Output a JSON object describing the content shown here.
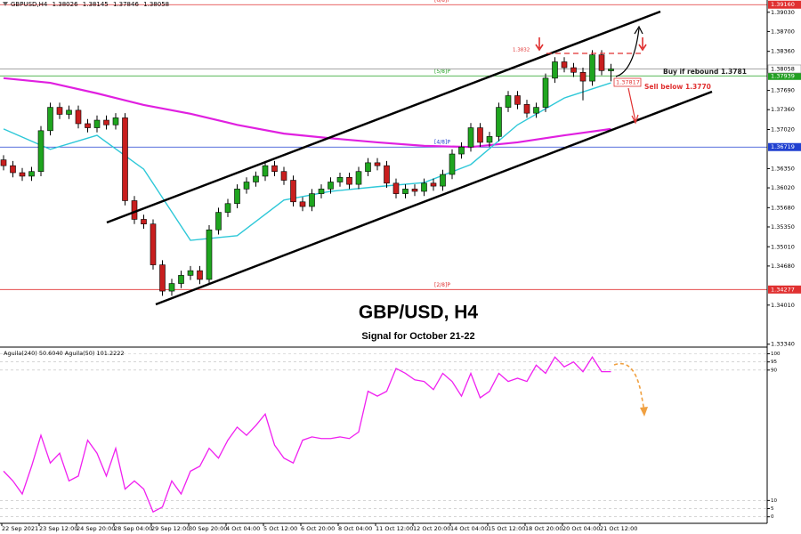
{
  "chart_data": [
    {
      "type": "candlestick",
      "symbol": "GBPUSD,H4",
      "title": "GBP/USD, H4",
      "subtitle": "Signal for October 21-22",
      "annotations": [
        "Buy if rebound 1.3781",
        "Sell below 1.3770",
        "1.3832",
        "1.37817"
      ],
      "categories": [
        "22 Sep 2021",
        null,
        null,
        null,
        "23 Sep 12:00",
        null,
        null,
        null,
        "24 Sep 20:00",
        null,
        null,
        null,
        "28 Sep 04:00",
        null,
        null,
        null,
        "29 Sep 12:00",
        null,
        null,
        null,
        "30 Sep 20:00",
        null,
        null,
        null,
        "4 Oct 04:00",
        null,
        null,
        null,
        "5 Oct 12:00",
        null,
        null,
        null,
        "6 Oct 20:00",
        null,
        null,
        null,
        "8 Oct 04:00",
        null,
        null,
        null,
        "11 Oct 12:00",
        null,
        null,
        null,
        "12 Oct 20:00",
        null,
        null,
        null,
        "14 Oct 04:00",
        null,
        null,
        null,
        "15 Oct 12:00",
        null,
        null,
        null,
        "18 Oct 20:00",
        null,
        null,
        null,
        "20 Oct 04:00",
        null,
        null,
        null,
        "21 Oct 12:00",
        null
      ],
      "open": [
        1.365,
        1.364,
        1.3628,
        1.3622,
        1.363,
        1.37,
        1.374,
        1.3728,
        1.3735,
        1.3712,
        1.3705,
        1.3718,
        1.371,
        1.3722,
        1.358,
        1.3548,
        1.354,
        1.347,
        1.3425,
        1.3438,
        1.3452,
        1.346,
        1.3445,
        1.353,
        1.356,
        1.3575,
        1.36,
        1.3612,
        1.3622,
        1.364,
        1.363,
        1.3615,
        1.3578,
        1.357,
        1.3592,
        1.36,
        1.3612,
        1.362,
        1.3608,
        1.363,
        1.3645,
        1.364,
        1.361,
        1.3592,
        1.36,
        1.3596,
        1.361,
        1.3605,
        1.3625,
        1.366,
        1.3672,
        1.3705,
        1.368,
        1.369,
        1.374,
        1.376,
        1.3745,
        1.373,
        1.374,
        1.379,
        1.3818,
        1.3808,
        1.38,
        1.3785,
        1.383,
        1.38026
      ],
      "high": [
        1.3658,
        1.3648,
        1.3636,
        1.3638,
        1.3708,
        1.3748,
        1.3748,
        1.3743,
        1.3743,
        1.372,
        1.3726,
        1.3726,
        1.373,
        1.373,
        1.3588,
        1.3556,
        1.3548,
        1.3478,
        1.3446,
        1.346,
        1.3468,
        1.3468,
        1.3538,
        1.3568,
        1.3583,
        1.3608,
        1.362,
        1.363,
        1.3648,
        1.3648,
        1.3638,
        1.3623,
        1.3586,
        1.36,
        1.3608,
        1.362,
        1.3628,
        1.3628,
        1.3638,
        1.3653,
        1.3653,
        1.3648,
        1.3618,
        1.3608,
        1.3608,
        1.3618,
        1.3618,
        1.3633,
        1.3668,
        1.368,
        1.3713,
        1.3713,
        1.3698,
        1.3748,
        1.3768,
        1.3768,
        1.3753,
        1.3748,
        1.3798,
        1.3826,
        1.3826,
        1.3816,
        1.3808,
        1.3838,
        1.3838,
        1.38145
      ],
      "low": [
        1.3632,
        1.362,
        1.3614,
        1.3614,
        1.3622,
        1.3692,
        1.372,
        1.372,
        1.3704,
        1.3697,
        1.3697,
        1.3702,
        1.3702,
        1.3572,
        1.354,
        1.3532,
        1.3462,
        1.3417,
        1.3417,
        1.343,
        1.3444,
        1.3437,
        1.3437,
        1.3522,
        1.3552,
        1.3567,
        1.3592,
        1.3604,
        1.3614,
        1.3622,
        1.3607,
        1.357,
        1.3562,
        1.3562,
        1.3584,
        1.3592,
        1.3604,
        1.36,
        1.36,
        1.3622,
        1.3632,
        1.3602,
        1.3584,
        1.3584,
        1.3588,
        1.3588,
        1.3597,
        1.3597,
        1.3617,
        1.3652,
        1.3664,
        1.3672,
        1.3672,
        1.3682,
        1.3732,
        1.3737,
        1.3722,
        1.3722,
        1.3732,
        1.3782,
        1.38,
        1.3792,
        1.3752,
        1.3777,
        1.3795,
        1.37846
      ],
      "close": [
        1.364,
        1.3628,
        1.3622,
        1.363,
        1.37,
        1.374,
        1.3728,
        1.3735,
        1.3712,
        1.3705,
        1.3718,
        1.371,
        1.3722,
        1.358,
        1.3548,
        1.354,
        1.347,
        1.3425,
        1.3438,
        1.3452,
        1.346,
        1.3445,
        1.353,
        1.356,
        1.3575,
        1.36,
        1.3612,
        1.3622,
        1.364,
        1.363,
        1.3615,
        1.3578,
        1.357,
        1.3592,
        1.36,
        1.3612,
        1.362,
        1.3608,
        1.363,
        1.3645,
        1.364,
        1.361,
        1.3592,
        1.36,
        1.3596,
        1.361,
        1.3605,
        1.3625,
        1.366,
        1.3672,
        1.3705,
        1.368,
        1.369,
        1.374,
        1.376,
        1.3745,
        1.373,
        1.374,
        1.379,
        1.3818,
        1.3808,
        1.38,
        1.3785,
        1.383,
        1.3803,
        1.38058
      ],
      "up_color": "#1fa51f",
      "down_color": "#c81e1e",
      "overlays": [
        {
          "color": "#e020e0",
          "x": [
            0,
            5,
            10,
            15,
            20,
            25,
            30,
            35,
            40,
            45,
            50,
            55,
            60,
            65
          ],
          "values": [
            1.379,
            1.3782,
            1.3764,
            1.3744,
            1.3729,
            1.371,
            1.3695,
            1.3687,
            1.368,
            1.3674,
            1.3672,
            1.368,
            1.3692,
            1.3703
          ]
        },
        {
          "color": "#2ec8d8",
          "x": [
            0,
            5,
            10,
            15,
            20,
            25,
            30,
            35,
            40,
            45,
            50,
            55,
            60,
            65
          ],
          "values": [
            1.3703,
            1.3668,
            1.3692,
            1.3634,
            1.3512,
            1.352,
            1.3581,
            1.3596,
            1.3604,
            1.3611,
            1.3642,
            1.371,
            1.3756,
            1.3782
          ]
        }
      ],
      "levels": [
        {
          "name": "[6/8]P",
          "value": 1.3916,
          "label": "1.39160",
          "color": "#e03030"
        },
        {
          "name": "[5/8]P",
          "value": 1.37939,
          "label": "1.37939",
          "color": "#22a022"
        },
        {
          "name": "[4/8]P",
          "value": 1.36719,
          "label": "1.36719",
          "color": "#2040d0"
        },
        {
          "name": "[2/8]P",
          "value": 1.34277,
          "label": "1.34277",
          "color": "#e03030"
        }
      ],
      "ylim": [
        1.3329,
        1.3924
      ],
      "yticks": [
        {
          "value": 1.3903,
          "label": "1.39030"
        },
        {
          "value": 1.387,
          "label": "1.38700"
        },
        {
          "value": 1.3836,
          "label": "1.38360"
        },
        {
          "value": 1.3769,
          "label": "1.37690"
        },
        {
          "value": 1.3736,
          "label": "1.37360"
        },
        {
          "value": 1.3702,
          "label": "1.37020"
        },
        {
          "value": 1.3635,
          "label": "1.36350"
        },
        {
          "value": 1.3602,
          "label": "1.36020"
        },
        {
          "value": 1.3568,
          "label": "1.35680"
        },
        {
          "value": 1.3535,
          "label": "1.35350"
        },
        {
          "value": 1.3501,
          "label": "1.35010"
        },
        {
          "value": 1.3468,
          "label": "1.34680"
        },
        {
          "value": 1.3401,
          "label": "1.34010"
        },
        {
          "value": 1.3334,
          "label": "1.33340"
        }
      ],
      "grid": false
    },
    {
      "type": "line",
      "title": "Aguila(240) 50.6040  Aguila(50) 101.2222",
      "color": "#f020f0",
      "values": [
        28,
        22,
        14,
        31,
        50,
        33,
        39,
        22,
        25,
        47,
        39,
        25,
        42,
        17,
        22,
        17,
        3,
        6,
        22,
        14,
        28,
        31,
        42,
        36,
        47,
        55,
        50,
        56,
        63,
        44,
        36,
        33,
        47,
        49,
        48,
        48,
        49,
        48,
        52,
        77,
        74,
        77,
        91,
        88,
        84,
        83,
        78,
        88,
        83,
        74,
        88,
        73,
        77,
        88,
        83,
        85,
        83,
        93,
        88,
        98,
        92,
        95,
        89,
        98,
        89,
        89
      ],
      "ylim": [
        -4,
        103
      ],
      "yticks": [
        100,
        95,
        90,
        10,
        5,
        0
      ],
      "grid": true
    }
  ]
}
